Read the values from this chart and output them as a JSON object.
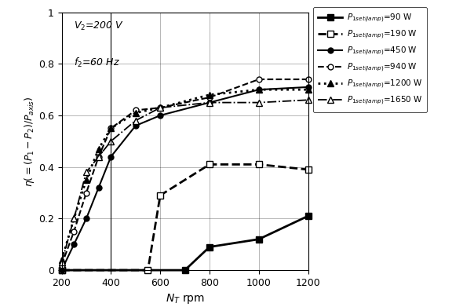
{
  "xlabel": "$N_T$ rpm",
  "ylabel": "$\\eta(=(P_1-P_2)/P_{axis})$",
  "xlim": [
    200,
    1200
  ],
  "ylim": [
    0,
    1.0
  ],
  "xticks": [
    200,
    400,
    600,
    800,
    1000,
    1200
  ],
  "yticks": [
    0,
    0.2,
    0.4,
    0.6,
    0.8,
    1.0
  ],
  "ytick_labels": [
    "0",
    "0.2",
    "0.4",
    "0.6",
    "0.8",
    "1"
  ],
  "annotation_line1": "$V_2$=200 V",
  "annotation_line2": "$f_2$=60 Hz",
  "vline_x": 400,
  "series": [
    {
      "label_P": "$P$",
      "label_sub": "$_{1set(lamp)}$",
      "label_val": "=90 W",
      "x": [
        200,
        700,
        800,
        1000,
        1200
      ],
      "y": [
        0.0,
        0.0,
        0.09,
        0.12,
        0.21
      ],
      "linestyle": "-",
      "marker": "s",
      "markersize": 6,
      "markerfacecolor": "black",
      "color": "black",
      "linewidth": 2.0
    },
    {
      "label_P": "$P$",
      "label_sub": "$_{1set(lamp)}$",
      "label_val": "=190 W",
      "x": [
        200,
        550,
        600,
        800,
        1000,
        1200
      ],
      "y": [
        0.0,
        0.0,
        0.29,
        0.41,
        0.41,
        0.39
      ],
      "linestyle": "--",
      "marker": "s",
      "markersize": 6,
      "markerfacecolor": "white",
      "color": "black",
      "linewidth": 2.0
    },
    {
      "label_P": "$P$",
      "label_sub": "$_{1set(lamp)}$",
      "label_val": "=450 W",
      "x": [
        200,
        250,
        300,
        350,
        400,
        500,
        600,
        800,
        1000,
        1200
      ],
      "y": [
        0.0,
        0.1,
        0.2,
        0.32,
        0.44,
        0.56,
        0.6,
        0.65,
        0.7,
        0.71
      ],
      "linestyle": "-",
      "marker": "o",
      "markersize": 5,
      "markerfacecolor": "black",
      "color": "black",
      "linewidth": 1.5
    },
    {
      "label_P": "$P$",
      "label_sub": "$_{1set(lamp)}$",
      "label_val": "=940 W",
      "x": [
        200,
        250,
        300,
        350,
        400,
        500,
        600,
        800,
        1000,
        1200
      ],
      "y": [
        0.02,
        0.15,
        0.3,
        0.44,
        0.55,
        0.62,
        0.63,
        0.67,
        0.74,
        0.74
      ],
      "linestyle": "--",
      "marker": "o",
      "markersize": 5,
      "markerfacecolor": "white",
      "color": "black",
      "linewidth": 1.5
    },
    {
      "label_P": "$P$",
      "label_sub": "$_{1set(lamp)}$",
      "label_val": "=1200 W",
      "x": [
        200,
        250,
        300,
        350,
        400,
        500,
        600,
        800,
        1000,
        1200
      ],
      "y": [
        0.04,
        0.2,
        0.35,
        0.47,
        0.55,
        0.61,
        0.63,
        0.68,
        0.7,
        0.7
      ],
      "linestyle": ":",
      "marker": "^",
      "markersize": 6,
      "markerfacecolor": "black",
      "color": "black",
      "linewidth": 2.0
    },
    {
      "label_P": "$P$",
      "label_sub": "$_{1set(lamp)}$",
      "label_val": "=1650 W",
      "x": [
        200,
        250,
        300,
        350,
        400,
        500,
        600,
        800,
        1000,
        1200
      ],
      "y": [
        0.03,
        0.2,
        0.38,
        0.44,
        0.5,
        0.58,
        0.63,
        0.65,
        0.65,
        0.66
      ],
      "linestyle": "-.",
      "marker": "^",
      "markersize": 6,
      "markerfacecolor": "white",
      "color": "black",
      "linewidth": 1.3
    }
  ],
  "fig_width": 6.04,
  "fig_height": 3.91,
  "dpi": 100
}
